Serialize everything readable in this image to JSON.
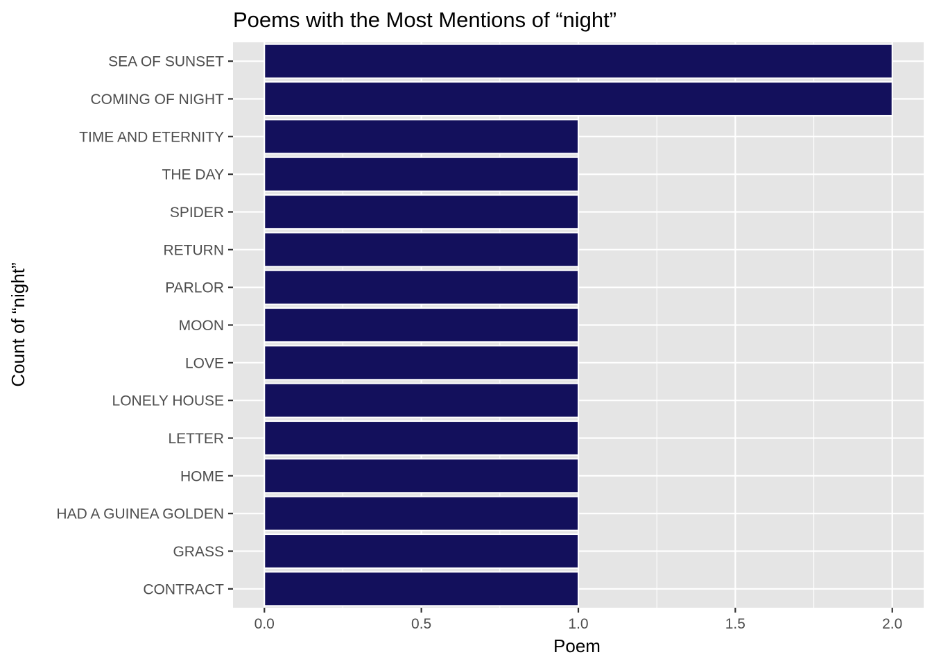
{
  "chart_data": {
    "type": "bar",
    "orientation": "horizontal",
    "title": "Poems with the Most Mentions of “night”",
    "xlabel": "Poem",
    "ylabel": "Count of “night”",
    "categories": [
      "SEA OF SUNSET",
      "COMING OF NIGHT",
      "TIME AND ETERNITY",
      "THE DAY",
      "SPIDER",
      "RETURN",
      "PARLOR",
      "MOON",
      "LOVE",
      "LONELY HOUSE",
      "LETTER",
      "HOME",
      "HAD A GUINEA GOLDEN",
      "GRASS",
      "CONTRACT"
    ],
    "values": [
      2,
      2,
      1,
      1,
      1,
      1,
      1,
      1,
      1,
      1,
      1,
      1,
      1,
      1,
      1
    ],
    "xlim": [
      -0.1,
      2.1
    ],
    "x_ticks": [
      "0.0",
      "0.5",
      "1.0",
      "1.5",
      "2.0"
    ],
    "x_tick_values": [
      0,
      0.5,
      1,
      1.5,
      2
    ],
    "grid": true,
    "bar_color": "#13105c",
    "panel_background": "#e5e5e5",
    "grid_color": "#ffffff"
  }
}
